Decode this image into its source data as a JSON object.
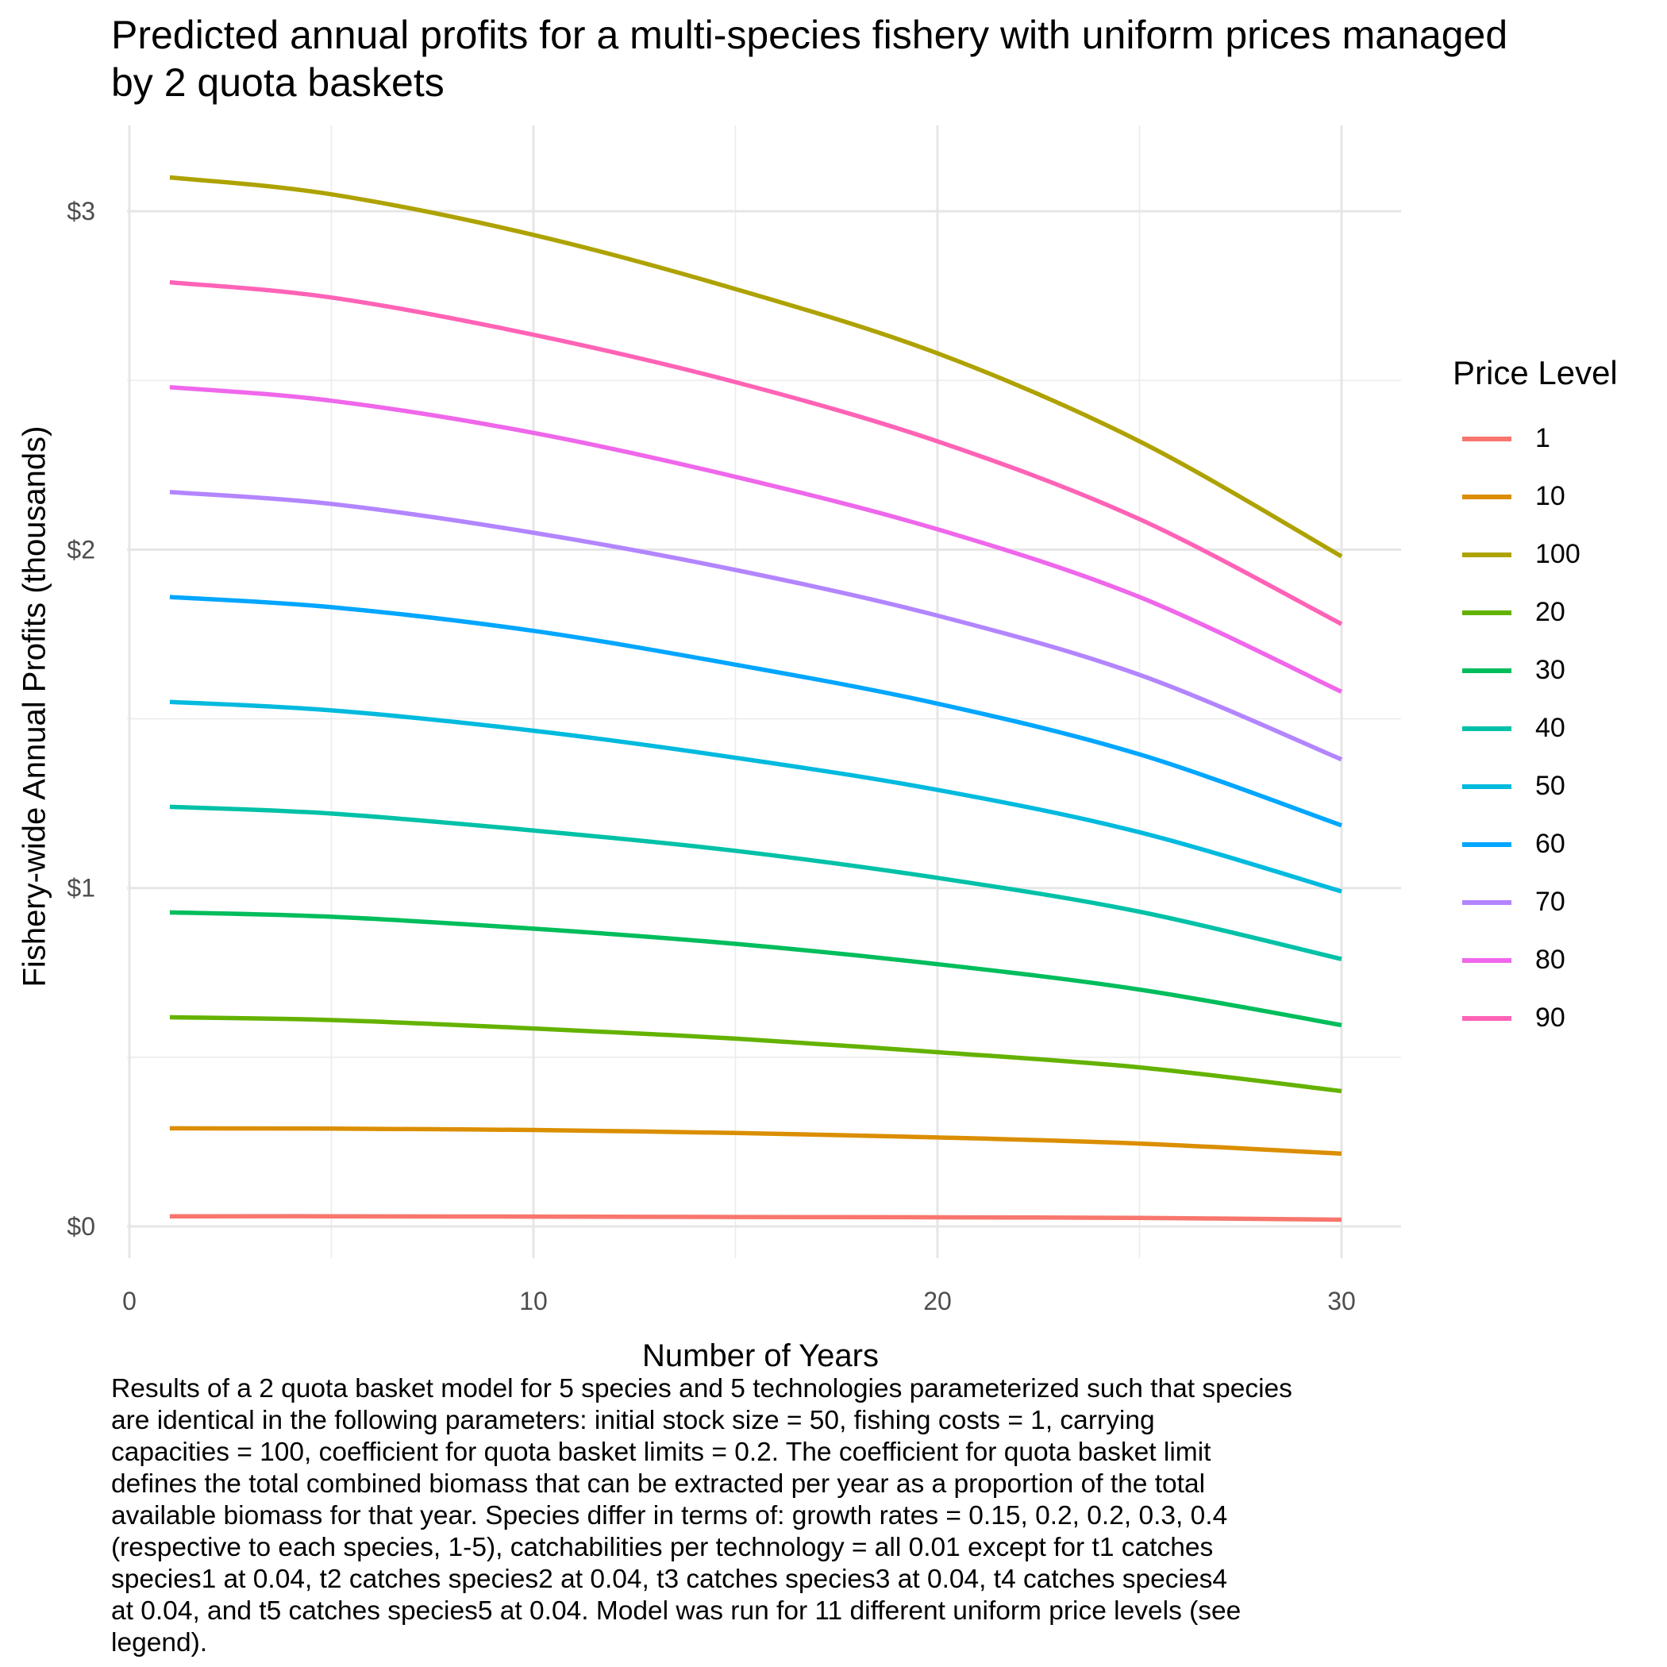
{
  "title_lines": [
    "Predicted annual profits for a multi-species fishery with uniform prices managed",
    "by 2 quota baskets"
  ],
  "caption_lines": [
    "Results of a 2 quota basket model for 5 species and 5 technologies parameterized such that species",
    "are identical in the following parameters: initial stock size = 50, fishing costs = 1, carrying",
    "capacities = 100, coefficient for quota basket limits = 0.2. The coefficient for quota basket limit",
    "defines the total combined biomass that can be extracted per year as a proportion of the total",
    "available biomass for that year. Species differ in terms of: growth rates = 0.15, 0.2, 0.2, 0.3, 0.4",
    "(respective to each species, 1-5), catchabilities per technology = all 0.01 except for t1 catches",
    "species1 at 0.04, t2 catches species2 at 0.04, t3 catches species3 at 0.04, t4 catches species4",
    "at 0.04, and t5 catches species5 at 0.04. Model was run for 11 different uniform price levels (see",
    "legend)."
  ],
  "chart_data": {
    "type": "line",
    "title": "Predicted annual profits for a multi-species fishery with uniform prices managed by 2 quota baskets",
    "xlabel": "Number of Years",
    "ylabel": "Fishery-wide Annual Profits (thousands)",
    "xlim": [
      -0.5,
      31.5
    ],
    "ylim": [
      -0.1,
      3.25
    ],
    "x_ticks": [
      0,
      10,
      20,
      30
    ],
    "y_ticks": [
      0,
      1,
      2,
      3
    ],
    "y_tick_labels": [
      "$0",
      "$1",
      "$2",
      "$3"
    ],
    "grid": true,
    "legend_title": "Price Level",
    "legend_position": "right",
    "x": [
      1,
      5,
      10,
      15,
      20,
      25,
      30
    ],
    "series": [
      {
        "name": "1",
        "color": "#F8766D",
        "values": [
          0.03,
          0.03,
          0.029,
          0.028,
          0.027,
          0.025,
          0.02
        ]
      },
      {
        "name": "10",
        "color": "#DB8E00",
        "values": [
          0.29,
          0.289,
          0.285,
          0.276,
          0.263,
          0.245,
          0.215
        ]
      },
      {
        "name": "100",
        "color": "#AEA200",
        "values": [
          3.1,
          3.05,
          2.93,
          2.77,
          2.58,
          2.32,
          1.98
        ]
      },
      {
        "name": "20",
        "color": "#64B200",
        "values": [
          0.618,
          0.61,
          0.585,
          0.555,
          0.515,
          0.47,
          0.4
        ]
      },
      {
        "name": "30",
        "color": "#00BD5C",
        "values": [
          0.928,
          0.915,
          0.88,
          0.835,
          0.775,
          0.7,
          0.595
        ]
      },
      {
        "name": "40",
        "color": "#00C1A7",
        "values": [
          1.24,
          1.22,
          1.17,
          1.11,
          1.03,
          0.93,
          0.79
        ]
      },
      {
        "name": "50",
        "color": "#00BADE",
        "values": [
          1.55,
          1.525,
          1.465,
          1.385,
          1.29,
          1.165,
          0.99
        ]
      },
      {
        "name": "60",
        "color": "#00A6FF",
        "values": [
          1.86,
          1.83,
          1.76,
          1.66,
          1.545,
          1.395,
          1.185
        ]
      },
      {
        "name": "70",
        "color": "#B385FF",
        "values": [
          2.17,
          2.135,
          2.05,
          1.94,
          1.805,
          1.63,
          1.38
        ]
      },
      {
        "name": "80",
        "color": "#EF67EB",
        "values": [
          2.48,
          2.44,
          2.345,
          2.215,
          2.06,
          1.86,
          1.58
        ]
      },
      {
        "name": "90",
        "color": "#FF63B6",
        "values": [
          2.79,
          2.745,
          2.635,
          2.495,
          2.32,
          2.09,
          1.78
        ]
      }
    ]
  }
}
